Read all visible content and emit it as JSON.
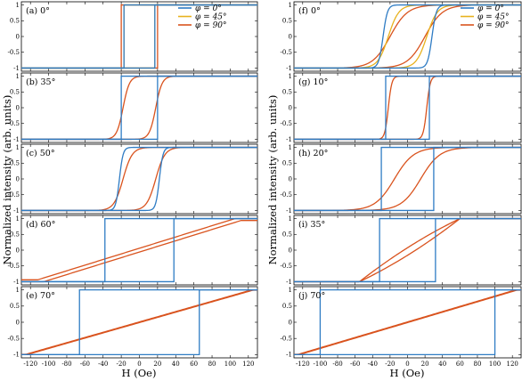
{
  "figure": {
    "ylabel_left": "Normalized intensity (arb. units)",
    "ylabel_right": "Normalized intensity (arb. units)",
    "xlabel_left": "H (Oe)",
    "xlabel_right": "H (Oe)",
    "legend": [
      {
        "label": "φ = 0°",
        "color": "#2f7cc4"
      },
      {
        "label": "φ = 45°",
        "color": "#e8b21e"
      },
      {
        "label": "φ = 90°",
        "color": "#d9531e"
      }
    ]
  },
  "chart_data": [
    {
      "type": "line",
      "panel": "(a) 0°",
      "xlim": [
        -130,
        130
      ],
      "ylim": [
        -1.1,
        1.1
      ],
      "xlabel": "H (Oe)",
      "ylabel": "Normalized intensity (arb. units)",
      "series": [
        {
          "name": "φ = 0°",
          "color": "#2f7cc4",
          "kind": "square",
          "hc": 17
        },
        {
          "name": "φ = 45°",
          "color": "#e8b21e",
          "kind": "square",
          "hc": 17
        },
        {
          "name": "φ = 90°",
          "color": "#d9531e",
          "kind": "square",
          "hc": 20
        }
      ]
    },
    {
      "type": "line",
      "panel": "(b) 35°",
      "xlim": [
        -130,
        130
      ],
      "ylim": [
        -1.1,
        1.1
      ],
      "series": [
        {
          "name": "φ = 0°",
          "color": "#2f7cc4",
          "kind": "square",
          "hc": 20
        },
        {
          "name": "φ = 90°",
          "color": "#d9531e",
          "kind": "sheared",
          "hc": 18,
          "w": 7
        }
      ]
    },
    {
      "type": "line",
      "panel": "(c) 50°",
      "xlim": [
        -130,
        130
      ],
      "ylim": [
        -1.1,
        1.1
      ],
      "series": [
        {
          "name": "φ = 0°",
          "color": "#2f7cc4",
          "kind": "sheared",
          "hc": 22,
          "w": 4
        },
        {
          "name": "φ = 90°",
          "color": "#d9531e",
          "kind": "sheared",
          "hc": 18,
          "w": 10
        }
      ]
    },
    {
      "type": "line",
      "panel": "(d) 60°",
      "xlim": [
        -130,
        130
      ],
      "ylim": [
        -1.1,
        1.1
      ],
      "series": [
        {
          "name": "φ = 0°",
          "color": "#2f7cc4",
          "kind": "square",
          "hc": 38
        },
        {
          "name": "φ = 90°",
          "color": "#d9531e",
          "kind": "linear",
          "sat": 112,
          "gap": 0.06
        }
      ]
    },
    {
      "type": "line",
      "panel": "(e) 70°",
      "xlim": [
        -130,
        130
      ],
      "ylim": [
        -1.1,
        1.1
      ],
      "series": [
        {
          "name": "φ = 0°",
          "color": "#2f7cc4",
          "kind": "square",
          "hc": 66
        },
        {
          "name": "φ = 90°",
          "color": "#d9531e",
          "kind": "linear",
          "sat": 125,
          "gap": 0.01
        }
      ]
    },
    {
      "type": "line",
      "panel": "(f) 0°",
      "xlim": [
        -130,
        130
      ],
      "ylim": [
        -1.1,
        1.1
      ],
      "xlabel": "H (Oe)",
      "ylabel": "Normalized intensity (arb. units)",
      "series": [
        {
          "name": "φ = 0°",
          "color": "#2f7cc4",
          "kind": "sheared",
          "hc": 28,
          "w": 5
        },
        {
          "name": "φ = 45°",
          "color": "#e8b21e",
          "kind": "sheared",
          "hc": 22,
          "w": 12
        },
        {
          "name": "φ = 90°",
          "color": "#d9531e",
          "kind": "sheared",
          "hc": 20,
          "w": 20
        }
      ]
    },
    {
      "type": "line",
      "panel": "(g) 10°",
      "xlim": [
        -130,
        130
      ],
      "ylim": [
        -1.1,
        1.1
      ],
      "series": [
        {
          "name": "φ = 0°",
          "color": "#2f7cc4",
          "kind": "square",
          "hc": 25
        },
        {
          "name": "φ = 90°",
          "color": "#d9531e",
          "kind": "sheared",
          "hc": 22,
          "w": 4
        }
      ]
    },
    {
      "type": "line",
      "panel": "(h) 20°",
      "xlim": [
        -130,
        130
      ],
      "ylim": [
        -1.1,
        1.1
      ],
      "series": [
        {
          "name": "φ = 0°",
          "color": "#2f7cc4",
          "kind": "square",
          "hc": 30
        },
        {
          "name": "φ = 90°",
          "color": "#d9531e",
          "kind": "sheared",
          "hc": 15,
          "w": 22
        }
      ]
    },
    {
      "type": "line",
      "panel": "(i) 35°",
      "xlim": [
        -130,
        130
      ],
      "ylim": [
        -1.1,
        1.1
      ],
      "series": [
        {
          "name": "φ = 0°",
          "color": "#2f7cc4",
          "kind": "square",
          "hc": 32
        },
        {
          "name": "φ = 90°",
          "color": "#d9531e",
          "kind": "ramp",
          "x0": -55,
          "x1": 60,
          "gap": 0.12
        }
      ]
    },
    {
      "type": "line",
      "panel": "(j) 70°",
      "xlim": [
        -130,
        130
      ],
      "ylim": [
        -1.1,
        1.1
      ],
      "series": [
        {
          "name": "φ = 0°",
          "color": "#2f7cc4",
          "kind": "square",
          "hc": 100
        },
        {
          "name": "φ = 90°",
          "color": "#d9531e",
          "kind": "linear",
          "sat": 125,
          "gap": 0.01
        }
      ]
    }
  ],
  "axes": {
    "x_ticks": [
      -120,
      -100,
      -80,
      -60,
      -40,
      -20,
      0,
      20,
      40,
      60,
      80,
      100,
      120
    ],
    "y_ticks": [
      -1,
      -0.5,
      0,
      0.5,
      1
    ],
    "y_tick_labels": [
      "-1",
      "-0.5",
      "0",
      "0.5",
      "1"
    ]
  }
}
